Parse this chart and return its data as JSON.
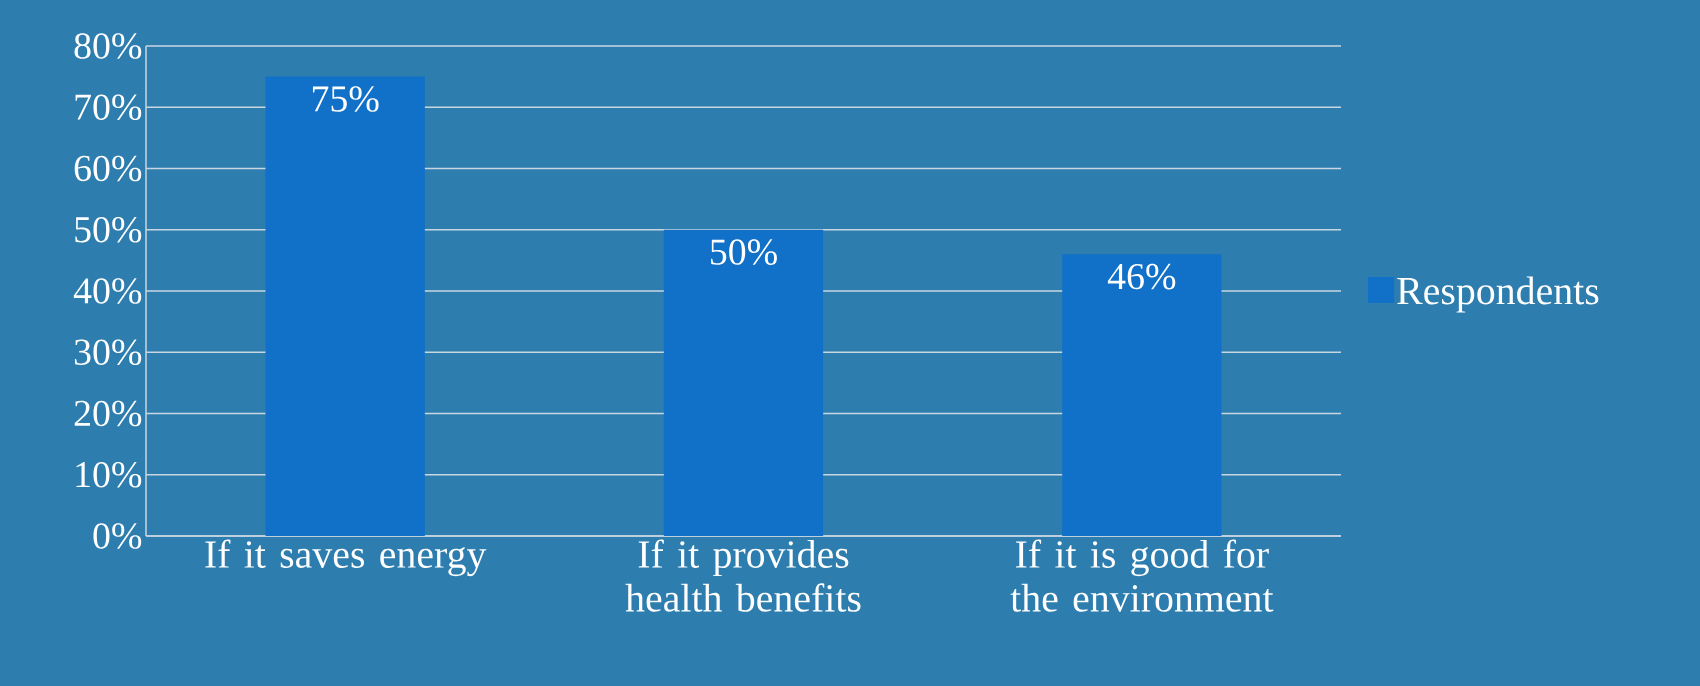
{
  "chart_data": {
    "type": "bar",
    "categories": [
      "If it saves energy",
      "If it provides health benefits",
      "If it is good for the environment"
    ],
    "series": [
      {
        "name": "Respondents",
        "color": "#1170c8",
        "values": [
          75,
          50,
          46
        ],
        "value_labels": [
          "75%",
          "50%",
          "46%"
        ]
      }
    ],
    "ylim": [
      0,
      80
    ],
    "yticks": [
      {
        "value": 0,
        "label": "0%"
      },
      {
        "value": 10,
        "label": "10%"
      },
      {
        "value": 20,
        "label": "20%"
      },
      {
        "value": 30,
        "label": "30%"
      },
      {
        "value": 40,
        "label": "40%"
      },
      {
        "value": 50,
        "label": "50%"
      },
      {
        "value": 60,
        "label": "60%"
      },
      {
        "value": 70,
        "label": "70%"
      },
      {
        "value": 80,
        "label": "80%"
      }
    ],
    "grid": "y",
    "legend": "right"
  }
}
